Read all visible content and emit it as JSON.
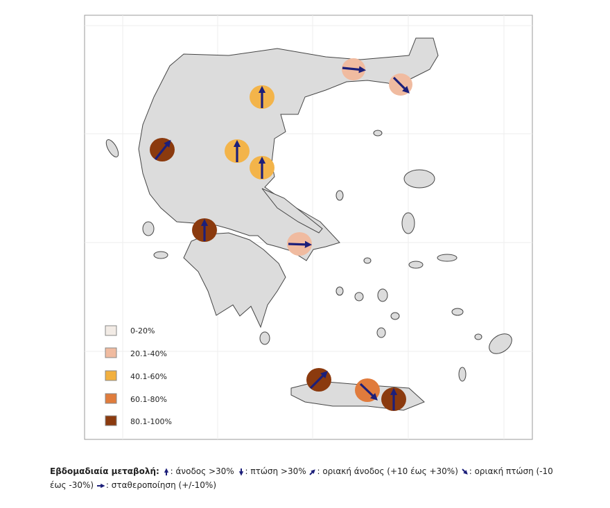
{
  "legend": {
    "items": [
      "0-20%",
      "20.1-40%",
      "40.1-60%",
      "60.1-80%",
      "80.1-100%"
    ]
  },
  "caption": {
    "title": "Εβδομαδιαία μεταβολή:",
    "items": [
      ": άνοδος >30%",
      ": πτώση >30%",
      ": οριακή άνοδος (+10 έως +30%)",
      ": οριακή πτώση  (-10 έως -30%)",
      ":  σταθεροποίηση (+/-10%)"
    ]
  }
}
